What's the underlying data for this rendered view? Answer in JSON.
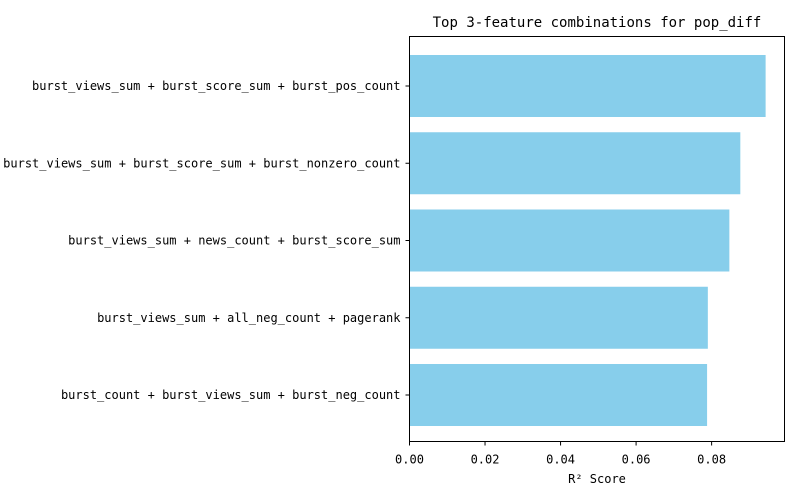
{
  "chart_data": {
    "type": "bar",
    "orientation": "horizontal",
    "title": "Top 3-feature combinations for pop_diff",
    "xlabel": "R² Score",
    "ylabel": "",
    "categories": [
      "burst_views_sum + burst_score_sum + burst_pos_count",
      "burst_views_sum + burst_score_sum + burst_nonzero_count",
      "burst_views_sum + news_count + burst_score_sum",
      "burst_views_sum + all_neg_count + pagerank",
      "burst_count + burst_views_sum + burst_neg_count"
    ],
    "values": [
      0.0943,
      0.0876,
      0.0847,
      0.079,
      0.0788
    ],
    "xlim": [
      0,
      0.0993
    ],
    "xticks": [
      0.0,
      0.02,
      0.04,
      0.06,
      0.08
    ],
    "xtick_labels": [
      "0.00",
      "0.02",
      "0.04",
      "0.06",
      "0.08"
    ],
    "bar_color": "#87ceeb",
    "grid": false
  }
}
